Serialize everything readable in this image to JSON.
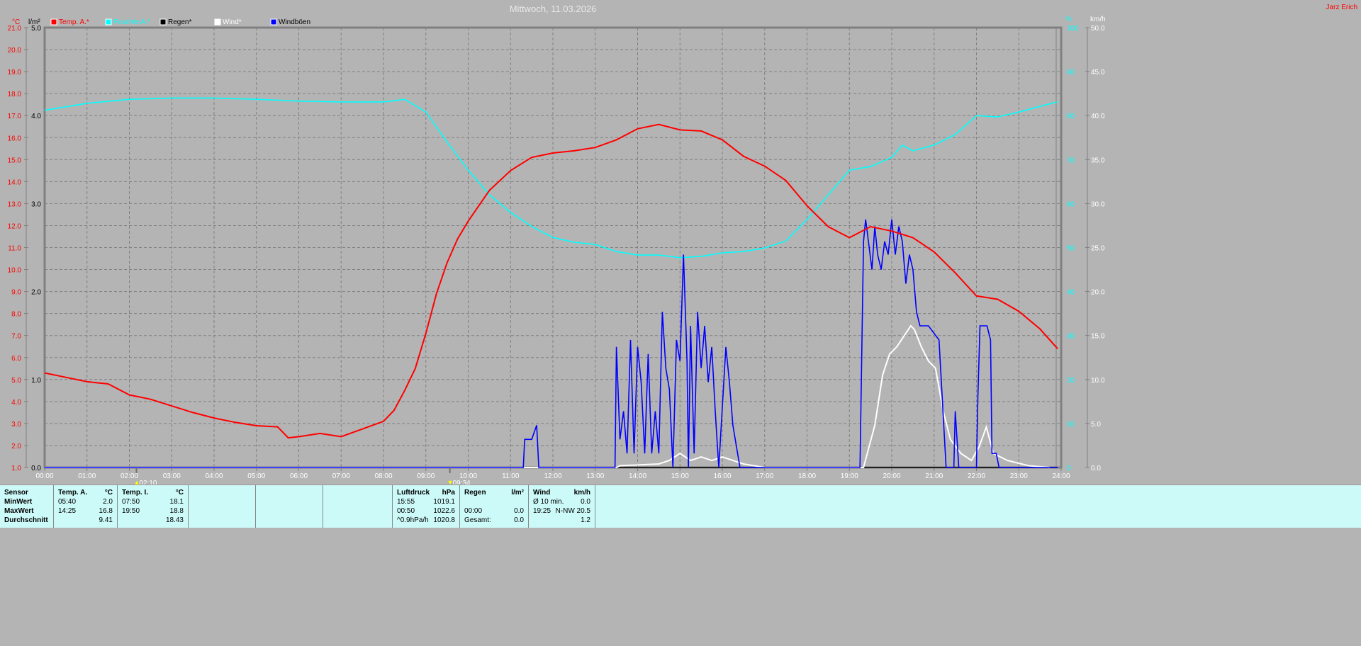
{
  "title": "Mittwoch, 11.03.2026",
  "author": "Jarz Erich",
  "colors": {
    "temp": "#ff0000",
    "humidity": "#00ffff",
    "rain": "#000000",
    "wind": "#ffffff",
    "gusts": "#0000ff",
    "background": "#b4b4b4",
    "table": "#ccfaf8"
  },
  "legend": [
    {
      "label": "Temp. A.*",
      "color": "#ff0000"
    },
    {
      "label": "Feuchte A.*",
      "color": "#00ffff"
    },
    {
      "label": "Regen*",
      "color": "#000000"
    },
    {
      "label": "Wind*",
      "color": "#ffffff"
    },
    {
      "label": "Windböen",
      "color": "#0000ff"
    }
  ],
  "markers": [
    {
      "label": "02:10",
      "icon": "moonrise-icon",
      "time": "02:10"
    },
    {
      "label": "09:34",
      "icon": "moonset-icon",
      "time": "09:34"
    }
  ],
  "chart_data": {
    "type": "line",
    "title": "Mittwoch, 11.03.2026",
    "grid": true,
    "xlim": [
      "00:00",
      "24:00"
    ],
    "x_ticks": [
      "00:00",
      "01:00",
      "02:00",
      "03:00",
      "04:00",
      "05:00",
      "06:00",
      "07:00",
      "08:00",
      "09:00",
      "10:00",
      "11:00",
      "12:00",
      "13:00",
      "14:00",
      "15:00",
      "16:00",
      "17:00",
      "18:00",
      "19:00",
      "20:00",
      "21:00",
      "22:00",
      "23:00",
      "24:00"
    ],
    "axes": {
      "temp": {
        "unit": "°C",
        "ylim": [
          1,
          21
        ],
        "ticks": [
          "21.0",
          "20.0",
          "19.0",
          "18.0",
          "17.0",
          "16.0",
          "15.0",
          "14.0",
          "13.0",
          "12.0",
          "11.0",
          "10.0",
          "9.0",
          "8.0",
          "7.0",
          "6.0",
          "5.0",
          "4.0",
          "3.0",
          "2.0",
          "1.0"
        ]
      },
      "rain": {
        "unit": "l/m²",
        "ylim": [
          0,
          5
        ],
        "ticks": [
          "5.0",
          "4.0",
          "3.0",
          "2.0",
          "1.0",
          "0.0"
        ]
      },
      "humidity": {
        "unit": "%",
        "ylim": [
          0,
          100
        ],
        "ticks": [
          "100",
          "90",
          "80",
          "70",
          "60",
          "50",
          "40",
          "30",
          "20",
          "10",
          "0"
        ]
      },
      "wind": {
        "unit": "km/h",
        "ylim": [
          0,
          50
        ],
        "ticks": [
          "50.0",
          "45.0",
          "40.0",
          "35.0",
          "30.0",
          "25.0",
          "20.0",
          "15.0",
          "10.0",
          "5.0",
          "0.0"
        ]
      }
    },
    "series": [
      {
        "name": "Temp. A.*",
        "axis": "temp",
        "points": [
          [
            "00:00",
            5.3
          ],
          [
            "00:30",
            5.1
          ],
          [
            "01:00",
            4.9
          ],
          [
            "01:30",
            4.8
          ],
          [
            "02:00",
            4.3
          ],
          [
            "02:30",
            4.1
          ],
          [
            "03:00",
            3.8
          ],
          [
            "03:30",
            3.5
          ],
          [
            "04:00",
            3.25
          ],
          [
            "04:30",
            3.05
          ],
          [
            "05:00",
            2.9
          ],
          [
            "05:30",
            2.85
          ],
          [
            "05:45",
            2.35
          ],
          [
            "06:00",
            2.4
          ],
          [
            "06:30",
            2.55
          ],
          [
            "07:00",
            2.4
          ],
          [
            "07:30",
            2.75
          ],
          [
            "08:00",
            3.1
          ],
          [
            "08:15",
            3.6
          ],
          [
            "08:30",
            4.5
          ],
          [
            "08:45",
            5.5
          ],
          [
            "09:00",
            7.1
          ],
          [
            "09:15",
            8.9
          ],
          [
            "09:30",
            10.3
          ],
          [
            "09:45",
            11.4
          ],
          [
            "10:00",
            12.2
          ],
          [
            "10:30",
            13.6
          ],
          [
            "11:00",
            14.5
          ],
          [
            "11:30",
            15.1
          ],
          [
            "12:00",
            15.3
          ],
          [
            "12:30",
            15.4
          ],
          [
            "13:00",
            15.55
          ],
          [
            "13:30",
            15.9
          ],
          [
            "14:00",
            16.4
          ],
          [
            "14:30",
            16.6
          ],
          [
            "15:00",
            16.35
          ],
          [
            "15:30",
            16.3
          ],
          [
            "16:00",
            15.9
          ],
          [
            "16:30",
            15.15
          ],
          [
            "17:00",
            14.7
          ],
          [
            "17:30",
            14.05
          ],
          [
            "18:00",
            12.9
          ],
          [
            "18:30",
            11.95
          ],
          [
            "19:00",
            11.45
          ],
          [
            "19:30",
            11.95
          ],
          [
            "20:00",
            11.75
          ],
          [
            "20:30",
            11.45
          ],
          [
            "21:00",
            10.8
          ],
          [
            "21:30",
            9.85
          ],
          [
            "22:00",
            8.8
          ],
          [
            "22:30",
            8.65
          ],
          [
            "23:00",
            8.1
          ],
          [
            "23:30",
            7.3
          ],
          [
            "23:55",
            6.4
          ]
        ]
      },
      {
        "name": "Feuchte A.*",
        "axis": "humidity",
        "points": [
          [
            "00:00",
            81.2
          ],
          [
            "01:00",
            82.8
          ],
          [
            "02:00",
            83.7
          ],
          [
            "03:00",
            84
          ],
          [
            "04:00",
            84
          ],
          [
            "05:00",
            83.7
          ],
          [
            "06:00",
            83.3
          ],
          [
            "07:00",
            83.1
          ],
          [
            "08:00",
            83.1
          ],
          [
            "08:30",
            83.7
          ],
          [
            "09:00",
            80.8
          ],
          [
            "09:30",
            74
          ],
          [
            "10:00",
            67.6
          ],
          [
            "10:30",
            62
          ],
          [
            "11:00",
            58
          ],
          [
            "11:30",
            54.8
          ],
          [
            "12:00",
            52.3
          ],
          [
            "12:30",
            51.2
          ],
          [
            "13:00",
            50.7
          ],
          [
            "13:30",
            49.1
          ],
          [
            "14:00",
            48.3
          ],
          [
            "14:30",
            48.3
          ],
          [
            "15:00",
            47.7
          ],
          [
            "15:30",
            48
          ],
          [
            "16:00",
            48.8
          ],
          [
            "16:30",
            49.1
          ],
          [
            "17:00",
            49.9
          ],
          [
            "17:30",
            51.5
          ],
          [
            "18:00",
            56.4
          ],
          [
            "18:30",
            62
          ],
          [
            "19:00",
            67.6
          ],
          [
            "19:30",
            68.4
          ],
          [
            "20:00",
            70.5
          ],
          [
            "20:15",
            73.3
          ],
          [
            "20:30",
            72
          ],
          [
            "21:00",
            73.3
          ],
          [
            "21:30",
            75.7
          ],
          [
            "22:00",
            80
          ],
          [
            "22:30",
            79.7
          ],
          [
            "23:00",
            80.8
          ],
          [
            "23:30",
            82.1
          ],
          [
            "23:55",
            83.1
          ]
        ]
      },
      {
        "name": "Regen*",
        "axis": "rain",
        "points": [
          [
            "00:00",
            0
          ],
          [
            "23:55",
            0
          ]
        ]
      },
      {
        "name": "Wind*",
        "axis": "wind",
        "points": [
          [
            "00:00",
            0
          ],
          [
            "13:30",
            0
          ],
          [
            "13:35",
            0.2
          ],
          [
            "14:30",
            0.4
          ],
          [
            "14:45",
            0.8
          ],
          [
            "15:00",
            1.6
          ],
          [
            "15:15",
            0.8
          ],
          [
            "15:30",
            1.2
          ],
          [
            "15:45",
            0.8
          ],
          [
            "16:00",
            1.2
          ],
          [
            "16:30",
            0.4
          ],
          [
            "17:00",
            0
          ],
          [
            "19:20",
            0
          ],
          [
            "19:36",
            4.8
          ],
          [
            "19:47",
            10.5
          ],
          [
            "19:57",
            12.9
          ],
          [
            "20:07",
            13.7
          ],
          [
            "20:17",
            14.9
          ],
          [
            "20:27",
            16.1
          ],
          [
            "20:32",
            15.7
          ],
          [
            "20:42",
            13.7
          ],
          [
            "20:52",
            12.1
          ],
          [
            "21:02",
            11.3
          ],
          [
            "21:13",
            6.4
          ],
          [
            "21:23",
            3.2
          ],
          [
            "21:38",
            1.6
          ],
          [
            "21:53",
            0.8
          ],
          [
            "22:04",
            2.4
          ],
          [
            "22:14",
            4.6
          ],
          [
            "22:24",
            1.6
          ],
          [
            "22:44",
            0.8
          ],
          [
            "23:14",
            0.2
          ],
          [
            "23:44",
            0
          ]
        ]
      },
      {
        "name": "Windböen",
        "axis": "wind",
        "points": [
          [
            "00:00",
            0
          ],
          [
            "11:18",
            0
          ],
          [
            "11:20",
            3.2
          ],
          [
            "11:30",
            3.2
          ],
          [
            "11:37",
            4.8
          ],
          [
            "11:40",
            0
          ],
          [
            "13:28",
            0
          ],
          [
            "13:30",
            13.7
          ],
          [
            "13:35",
            3.2
          ],
          [
            "13:40",
            6.4
          ],
          [
            "13:45",
            1.6
          ],
          [
            "13:50",
            14.5
          ],
          [
            "13:55",
            1.6
          ],
          [
            "14:00",
            13.7
          ],
          [
            "14:05",
            9.7
          ],
          [
            "14:10",
            1.6
          ],
          [
            "14:15",
            12.9
          ],
          [
            "14:20",
            1.6
          ],
          [
            "14:25",
            6.4
          ],
          [
            "14:30",
            1.6
          ],
          [
            "14:35",
            17.7
          ],
          [
            "14:40",
            11.3
          ],
          [
            "14:45",
            8.9
          ],
          [
            "14:50",
            0
          ],
          [
            "14:55",
            14.5
          ],
          [
            "15:00",
            12.1
          ],
          [
            "15:05",
            24.2
          ],
          [
            "15:10",
            12.1
          ],
          [
            "15:12",
            0
          ],
          [
            "15:15",
            16.1
          ],
          [
            "15:20",
            1.6
          ],
          [
            "15:25",
            17.7
          ],
          [
            "15:30",
            11.3
          ],
          [
            "15:35",
            16.1
          ],
          [
            "15:40",
            9.7
          ],
          [
            "15:45",
            13.7
          ],
          [
            "15:50",
            6.4
          ],
          [
            "15:55",
            0
          ],
          [
            "16:05",
            13.7
          ],
          [
            "16:10",
            9.7
          ],
          [
            "16:15",
            4.8
          ],
          [
            "16:20",
            2.4
          ],
          [
            "16:25",
            0
          ],
          [
            "19:15",
            0
          ],
          [
            "19:20",
            25.7
          ],
          [
            "19:23",
            28.2
          ],
          [
            "19:27",
            25.7
          ],
          [
            "19:32",
            22.5
          ],
          [
            "19:36",
            27.4
          ],
          [
            "19:40",
            24.2
          ],
          [
            "19:45",
            22.5
          ],
          [
            "19:50",
            25.7
          ],
          [
            "19:55",
            24.2
          ],
          [
            "20:00",
            28.2
          ],
          [
            "20:05",
            24.2
          ],
          [
            "20:10",
            27.4
          ],
          [
            "20:15",
            25.7
          ],
          [
            "20:20",
            20.9
          ],
          [
            "20:25",
            24.2
          ],
          [
            "20:30",
            22.5
          ],
          [
            "20:35",
            17.7
          ],
          [
            "20:40",
            16.1
          ],
          [
            "20:52",
            16.1
          ],
          [
            "21:07",
            14.5
          ],
          [
            "21:17",
            0
          ],
          [
            "21:28",
            0
          ],
          [
            "21:30",
            6.4
          ],
          [
            "21:35",
            0
          ],
          [
            "22:00",
            0
          ],
          [
            "22:02",
            8
          ],
          [
            "22:05",
            16.1
          ],
          [
            "22:15",
            16.1
          ],
          [
            "22:20",
            14.5
          ],
          [
            "22:22",
            1.6
          ],
          [
            "22:28",
            1.6
          ],
          [
            "22:32",
            0
          ],
          [
            "23:55",
            0
          ]
        ]
      }
    ]
  },
  "table": {
    "sensor": {
      "h": "Sensor",
      "r1": "MinWert",
      "r2": "MaxWert",
      "r3": "Durchschnitt"
    },
    "tempA": {
      "h": "Temp. A.",
      "u": "°C",
      "r1t": "05:40",
      "r1v": "2.0",
      "r2t": "14:25",
      "r2v": "16.8",
      "r3t": "",
      "r3v": "9.41"
    },
    "tempI": {
      "h": "Temp. I.",
      "u": "°C",
      "r1t": "07:50",
      "r1v": "18.1",
      "r2t": "19:50",
      "r2v": "18.8",
      "r3t": "",
      "r3v": "18.43"
    },
    "pressure": {
      "h": "Luftdruck",
      "u": "hPa",
      "r1t": "15:55",
      "r1v": "1019.1",
      "r2t": "00:50",
      "r2v": "1022.6",
      "r3t": "^0.9hPa/h",
      "r3v": "1020.8"
    },
    "rain": {
      "h": "Regen",
      "u": "l/m²",
      "r1t": "",
      "r1v": "",
      "r2t": "00:00",
      "r2v": "0.0",
      "r3t": "Gesamt:",
      "r3v": "0.0"
    },
    "wind": {
      "h": "Wind",
      "u": "km/h",
      "r1t": "Ø 10 min.",
      "r1v": "0.0",
      "r2t": "19:25",
      "r2v": "N-NW 20.5",
      "r3t": "",
      "r3v": "1.2"
    }
  }
}
